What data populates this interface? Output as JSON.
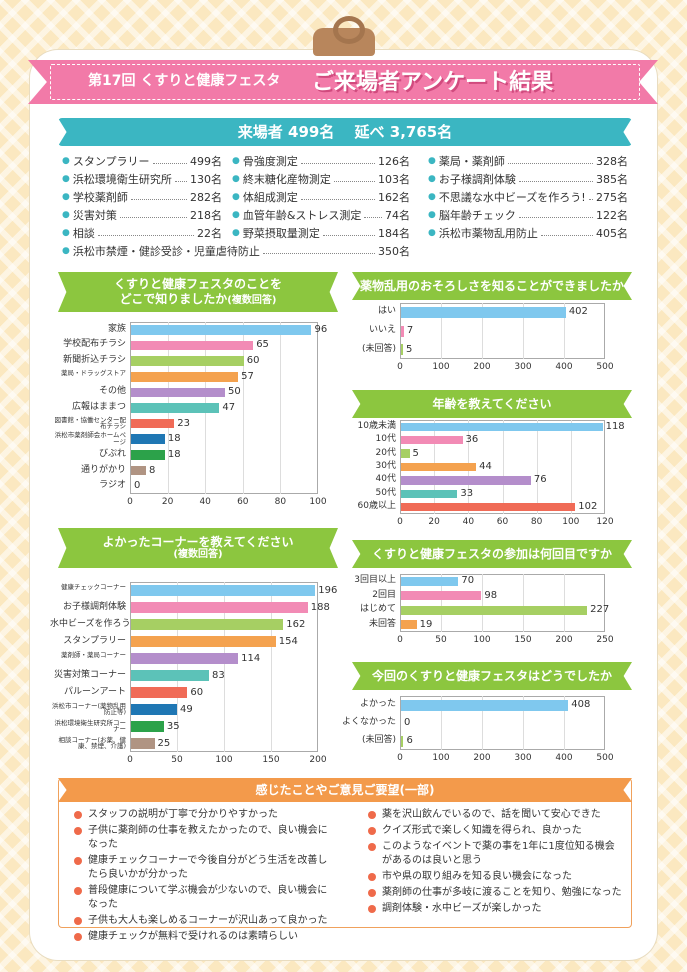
{
  "header": {
    "subtitle": "第17回 くすりと健康フェスタ",
    "title": "ご来場者アンケート結果"
  },
  "visitors": {
    "label": "来場者 499名　 延べ 3,765名",
    "items": [
      {
        "name": "スタンプラリー",
        "value": "499名"
      },
      {
        "name": "浜松環境衛生研究所",
        "value": "130名"
      },
      {
        "name": "学校薬剤師",
        "value": "282名"
      },
      {
        "name": "災害対策",
        "value": "218名"
      },
      {
        "name": "相談",
        "value": "22名"
      },
      {
        "name": "骨強度測定",
        "value": "126名"
      },
      {
        "name": "終末糖化産物測定",
        "value": "103名"
      },
      {
        "name": "体組成測定",
        "value": "162名"
      },
      {
        "name": "血管年齢&ストレス測定",
        "value": "74名"
      },
      {
        "name": "野菜摂取量測定",
        "value": "184名"
      },
      {
        "name": "薬局・薬剤師",
        "value": "328名"
      },
      {
        "name": "お子様調剤体験",
        "value": "385名"
      },
      {
        "name": "不思議な水中ビーズを作ろう!",
        "value": "275名"
      },
      {
        "name": "脳年齢チェック",
        "value": "122名"
      },
      {
        "name": "浜松市薬物乱用防止",
        "value": "405名"
      },
      {
        "name": "浜松市禁煙・健診受診・児童虐待防止",
        "value": "350名"
      }
    ]
  },
  "chart_data": [
    {
      "type": "bar",
      "id": "c1",
      "title": "くすりと健康フェスタのことを どこで知りましたか",
      "title_note": "(複数回答)",
      "title_line1": "くすりと健康フェスタのことを",
      "title_line2": "どこで知りましたか",
      "categories": [
        "家族",
        "学校配布チラシ",
        "新聞折込チラシ",
        "薬局・ドラッグストア",
        "その他",
        "広報はままつ",
        "図書館・協働センター配布チラシ",
        "浜松市薬剤師会ホームページ",
        "びぷれ",
        "通りがかり",
        "ラジオ"
      ],
      "values": [
        96,
        65,
        60,
        57,
        50,
        47,
        23,
        18,
        18,
        8,
        0
      ],
      "colors": [
        "#7fc8ee",
        "#f28bb5",
        "#a6cf63",
        "#f4a24f",
        "#b48ecb",
        "#5cc2b8",
        "#f06b57",
        "#1f77b4",
        "#2ca24a",
        "#b09483",
        "#999999"
      ],
      "xlim": [
        0,
        100
      ],
      "ticks": [
        0,
        20,
        40,
        60,
        80,
        100
      ]
    },
    {
      "type": "bar",
      "id": "c2",
      "title": "薬物乱用のおそろしさを知ることができましたか",
      "categories": [
        "はい",
        "いいえ",
        "(未回答)"
      ],
      "values": [
        402,
        7,
        5
      ],
      "colors": [
        "#7fc8ee",
        "#f28bb5",
        "#a6cf63"
      ],
      "xlim": [
        0,
        500
      ],
      "ticks": [
        0,
        100,
        200,
        300,
        400,
        500
      ]
    },
    {
      "type": "bar",
      "id": "c3",
      "title": "年齢を教えてください",
      "categories": [
        "10歳未満",
        "10代",
        "20代",
        "30代",
        "40代",
        "50代",
        "60歳以上"
      ],
      "values": [
        118,
        36,
        5,
        44,
        76,
        33,
        102
      ],
      "colors": [
        "#7fc8ee",
        "#f28bb5",
        "#a6cf63",
        "#f4a24f",
        "#b48ecb",
        "#5cc2b8",
        "#f06b57"
      ],
      "xlim": [
        0,
        120
      ],
      "ticks": [
        0,
        20,
        40,
        60,
        80,
        100,
        120
      ]
    },
    {
      "type": "bar",
      "id": "c4",
      "title": "よかったコーナーを教えてください",
      "title_note": "(複数回答)",
      "categories": [
        "健康チェックコーナー",
        "お子様調剤体験",
        "水中ビーズを作ろう",
        "スタンプラリー",
        "薬剤師・薬局コーナー",
        "災害対策コーナー",
        "パルーンアート",
        "浜松市コーナー(薬物乱用防止等)",
        "浜松環境衛生研究所コーナー",
        "相談コーナー(お薬、健康、禁煙、介護)"
      ],
      "values": [
        196,
        188,
        162,
        154,
        114,
        83,
        60,
        49,
        35,
        25
      ],
      "colors": [
        "#7fc8ee",
        "#f28bb5",
        "#a6cf63",
        "#f4a24f",
        "#b48ecb",
        "#5cc2b8",
        "#f06b57",
        "#1f77b4",
        "#2ca24a",
        "#b09483"
      ],
      "xlim": [
        0,
        200
      ],
      "ticks": [
        0,
        50,
        100,
        150,
        200
      ]
    },
    {
      "type": "bar",
      "id": "c5",
      "title": "くすりと健康フェスタの参加は何回目ですか",
      "categories": [
        "3回目以上",
        "2回目",
        "はじめて",
        "未回答"
      ],
      "values": [
        70,
        98,
        227,
        19
      ],
      "colors": [
        "#7fc8ee",
        "#f28bb5",
        "#a6cf63",
        "#f4a24f"
      ],
      "xlim": [
        0,
        250
      ],
      "ticks": [
        0,
        50,
        100,
        150,
        200,
        250
      ]
    },
    {
      "type": "bar",
      "id": "c6",
      "title": "今回のくすりと健康フェスタはどうでしたか",
      "categories": [
        "よかった",
        "よくなかった",
        "(未回答)"
      ],
      "values": [
        408,
        0,
        6
      ],
      "colors": [
        "#7fc8ee",
        "#f28bb5",
        "#a6cf63"
      ],
      "xlim": [
        0,
        500
      ],
      "ticks": [
        0,
        100,
        200,
        300,
        400,
        500
      ]
    }
  ],
  "opinions": {
    "title": "感じたことやご意見ご要望(一部)",
    "left": [
      "スタッフの説明が丁寧で分かりやすかった",
      "子供に薬剤師の仕事を教えたかったので、良い機会になった",
      "健康チェックコーナーで今後自分がどう生活を改善したら良いかが分かった",
      "普段健康について学ぶ機会が少ないので、良い機会になった",
      "子供も大人も楽しめるコーナーが沢山あって良かった",
      "健康チェックが無料で受けれるのは素晴らしい"
    ],
    "right": [
      "薬を沢山飲んでいるので、話を聞いて安心できた",
      "クイズ形式で楽しく知識を得られ、良かった",
      "このようなイベントで薬の事を1年に1度位知る機会があるのは良いと思う",
      "市や県の取り組みを知る良い機会になった",
      "薬剤師の仕事が多岐に渡ることを知り、勉強になった",
      "調剤体験・水中ビーズが楽しかった"
    ]
  }
}
